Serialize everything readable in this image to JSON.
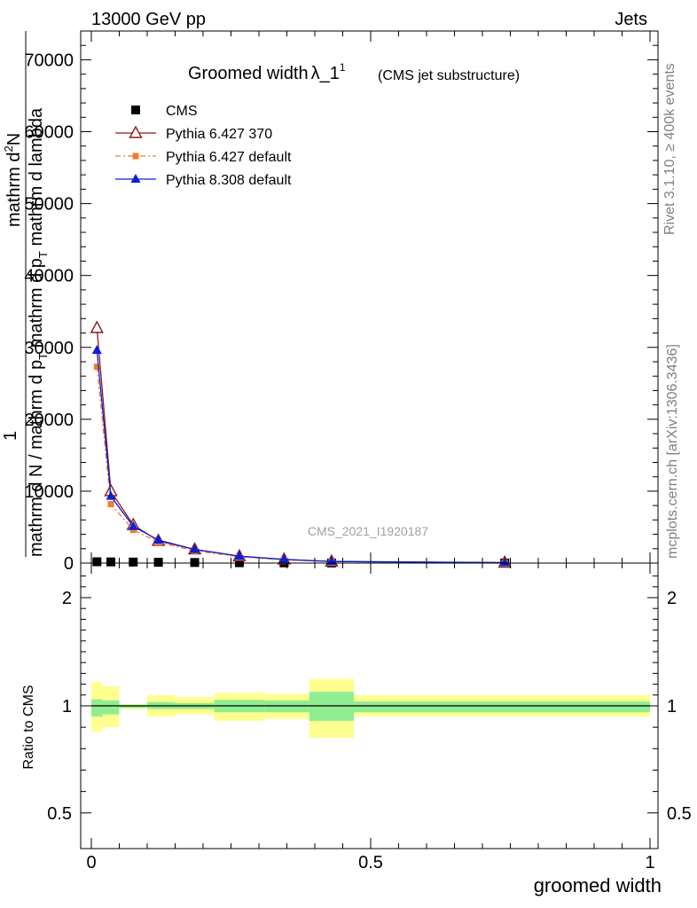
{
  "header": {
    "left": "13000 GeV pp",
    "right": "Jets"
  },
  "side_labels": {
    "rivet": "Rivet 3.1.10, ≥ 400k events",
    "mcplots": "mcplots.cern.ch [arXiv:1306.3436]"
  },
  "chart_data": [
    {
      "type": "line",
      "title_main": "Groomed width",
      "title_sym": "λ_1",
      "title_sup": "1",
      "title_sub": "(CMS jet substructure)",
      "watermark": "CMS_2021_I1920187",
      "ylabel_lines": [
        "mathrm d^{2}N",
        "1",
        "mathrm d N / mathrm d p_T mathrm d p_T mathrm d lambda"
      ],
      "ylabel_parts": {
        "top": "mathrm d",
        "top_sup": "2",
        "top_tail": "N",
        "num": "1",
        "den": "mathrm d N / mathrm d p",
        "den_sub": "T",
        "den_tail": " mathrm d p",
        "den_sub2": "T",
        "den_end": " mathrm d lambda"
      },
      "xlim": [
        0,
        1
      ],
      "ylim": [
        0,
        74000
      ],
      "ytick_values": [
        0,
        10000,
        20000,
        30000,
        40000,
        50000,
        60000,
        70000
      ],
      "ytick_labels": [
        "0",
        "10000",
        "20000",
        "30000",
        "40000",
        "50000",
        "60000",
        "70000"
      ],
      "legend_position": "top-left",
      "series": [
        {
          "name": "CMS",
          "color": "#000000",
          "marker": "square",
          "x": [
            0.01,
            0.035,
            0.075,
            0.12,
            0.185,
            0.265,
            0.345,
            0.43,
            0.74
          ],
          "y": [
            180,
            160,
            140,
            110,
            80,
            50,
            30,
            15,
            5
          ]
        },
        {
          "name": "Pythia 6.427 370",
          "color": "#8b1a1a",
          "marker": "triangle-open",
          "x": [
            0.01,
            0.035,
            0.075,
            0.12,
            0.185,
            0.265,
            0.345,
            0.43,
            0.74
          ],
          "y": [
            32700,
            10000,
            5300,
            3100,
            1900,
            950,
            500,
            220,
            60
          ]
        },
        {
          "name": "Pythia 6.427 default",
          "color": "#f07c2c",
          "marker": "square-small",
          "x": [
            0.01,
            0.035,
            0.075,
            0.12,
            0.185,
            0.265,
            0.345,
            0.43,
            0.74
          ],
          "y": [
            27300,
            8200,
            4600,
            2900,
            1700,
            870,
            450,
            200,
            55
          ]
        },
        {
          "name": "Pythia 8.308 default",
          "color": "#0a1fd6",
          "marker": "triangle-filled",
          "x": [
            0.01,
            0.035,
            0.075,
            0.12,
            0.185,
            0.265,
            0.345,
            0.43,
            0.74
          ],
          "y": [
            29600,
            9300,
            5100,
            3200,
            1900,
            970,
            510,
            230,
            60
          ]
        }
      ]
    },
    {
      "type": "area",
      "ylabel": "Ratio to CMS",
      "xlabel": "groomed width",
      "xlim": [
        0,
        1
      ],
      "ylim": [
        0.3,
        2.3
      ],
      "xtick_values": [
        0,
        0.5,
        1
      ],
      "xtick_labels": [
        "0",
        "0.5",
        "1"
      ],
      "ytick_values": [
        0.5,
        1,
        2
      ],
      "ytick_labels": [
        "0.5",
        "1",
        "2"
      ],
      "reference_line": 1,
      "inner_band_color": "#90ee90",
      "outer_band_color": "#ffff90",
      "bins": [
        {
          "x0": 0.0,
          "x1": 0.02,
          "inner": [
            0.95,
            1.06
          ],
          "outer": [
            0.88,
            1.22
          ]
        },
        {
          "x0": 0.02,
          "x1": 0.05,
          "inner": [
            0.96,
            1.05
          ],
          "outer": [
            0.9,
            1.18
          ]
        },
        {
          "x0": 0.05,
          "x1": 0.1,
          "inner": [
            0.99,
            1.01
          ],
          "outer": [
            0.985,
            1.015
          ]
        },
        {
          "x0": 0.1,
          "x1": 0.15,
          "inner": [
            0.985,
            1.035
          ],
          "outer": [
            0.95,
            1.1
          ]
        },
        {
          "x0": 0.15,
          "x1": 0.22,
          "inner": [
            0.985,
            1.025
          ],
          "outer": [
            0.96,
            1.08
          ]
        },
        {
          "x0": 0.22,
          "x1": 0.31,
          "inner": [
            0.97,
            1.055
          ],
          "outer": [
            0.93,
            1.12
          ]
        },
        {
          "x0": 0.31,
          "x1": 0.39,
          "inner": [
            0.97,
            1.05
          ],
          "outer": [
            0.94,
            1.11
          ]
        },
        {
          "x0": 0.39,
          "x1": 0.47,
          "inner": [
            0.93,
            1.13
          ],
          "outer": [
            0.85,
            1.25
          ]
        },
        {
          "x0": 0.47,
          "x1": 1.0,
          "inner": [
            0.97,
            1.04
          ],
          "outer": [
            0.95,
            1.1
          ]
        }
      ]
    }
  ]
}
